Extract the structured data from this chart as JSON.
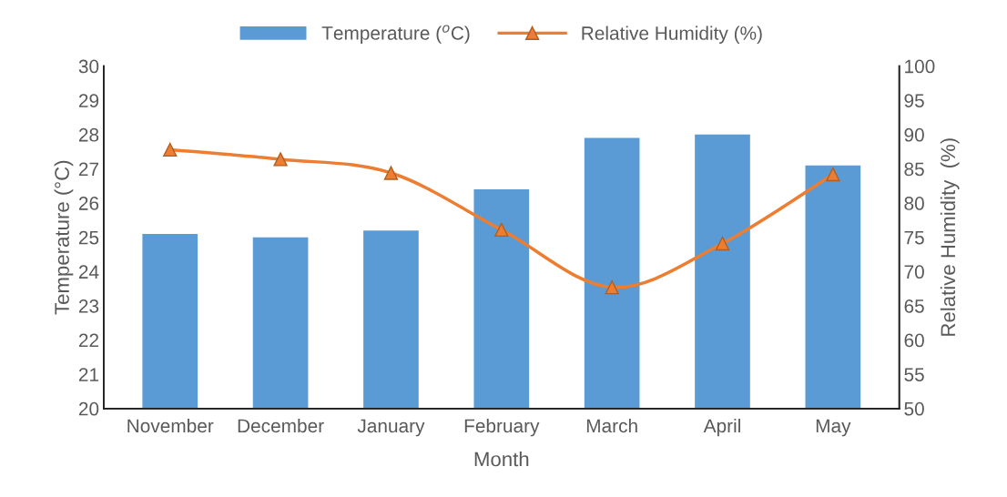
{
  "chart_data": {
    "type": "bar",
    "xlabel": "Month",
    "ylabel": "Temperature (°C)",
    "y2label": "Relative Humidity  (%)",
    "categories": [
      "November",
      "December",
      "January",
      "February",
      "March",
      "April",
      "May"
    ],
    "series": [
      {
        "name": "Temperature ($^{o}$C)",
        "color": "#5b9bd5",
        "values": [
          25.1,
          25.0,
          25.2,
          26.4,
          27.9,
          28.0,
          27.1
        ]
      },
      {
        "name": "Relative Humidity (%)",
        "type": "line",
        "axis": "y2",
        "color": "#ed7d31",
        "marker": "triangle",
        "values": [
          87.8,
          86.4,
          84.4,
          76.1,
          67.7,
          74.1,
          84.2
        ]
      }
    ],
    "ylim": [
      20,
      30
    ],
    "yticks": [
      20,
      21,
      22,
      23,
      24,
      25,
      26,
      27,
      28,
      29,
      30
    ],
    "y2lim": [
      50,
      100
    ],
    "y2ticks": [
      50,
      55,
      60,
      65,
      70,
      75,
      80,
      85,
      90,
      95,
      100
    ],
    "legend": "top",
    "grid": false
  }
}
